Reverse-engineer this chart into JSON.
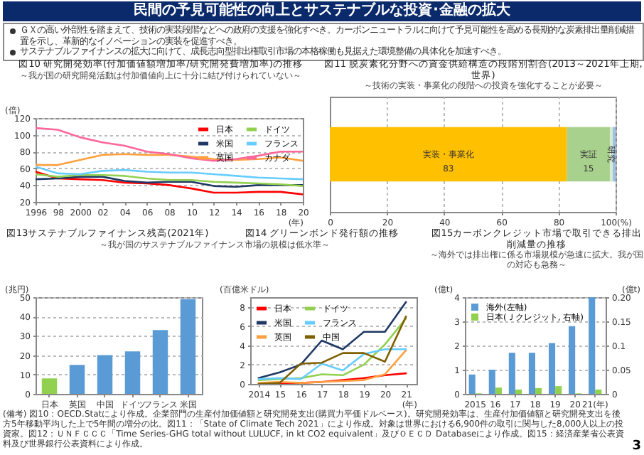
{
  "chart_data": [
    {
      "type": "other",
      "title": "民間の予見可能性の向上とサステナブルな投資･金融の拡大",
      "annotations": [
        "ＧＸの高い外部性を踏まえて、技術の実装段階などへの政府の支援を強化すべき。カーボンニュートラルに向けて予見可能性を高める長期的な炭素排出量削減措置を示し、革新的なイノベーションの実装を促進すべき。",
        "サステナブルファイナンスの拡大に向けて、成長志向型排出権取引市場の本格稼働も見据えた環境整備の具体化を加速すべき。"
      ]
    },
    {
      "type": "line",
      "title": "図10 研究開発効率(付加価値額増加率/研究開発費増加率)の推移",
      "subtitle": "～我が国の研究開発活動は付加価値向上に十分に結び付けられていない～",
      "ylabel": "(倍)",
      "xlabel": "(年)",
      "x": [
        1996,
        1998,
        2000,
        2002,
        2004,
        2006,
        2008,
        2010,
        2012,
        2014,
        2016,
        2018,
        2020
      ],
      "xlim": [
        1996,
        2020
      ],
      "xticks": [
        {
          "value": 1996,
          "label": "1996"
        },
        {
          "value": 1998,
          "label": "98"
        },
        {
          "value": 2000,
          "label": "2000"
        },
        {
          "value": 2002,
          "label": "02"
        },
        {
          "value": 2004,
          "label": "04"
        },
        {
          "value": 2006,
          "label": "06"
        },
        {
          "value": 2008,
          "label": "08"
        },
        {
          "value": 2010,
          "label": "10"
        },
        {
          "value": 2012,
          "label": "12"
        },
        {
          "value": 2014,
          "label": "14"
        },
        {
          "value": 2016,
          "label": "16"
        },
        {
          "value": 2018,
          "label": "18"
        },
        {
          "value": 2020,
          "label": "20"
        }
      ],
      "ylim": [
        20,
        120
      ],
      "yticks": [
        20,
        40,
        60,
        80,
        100,
        120
      ],
      "grid": "y",
      "legend": "top right",
      "series": [
        {
          "name": "日本",
          "color": "#ff0000",
          "values": [
            56,
            48,
            47,
            46,
            43,
            42,
            40,
            36,
            31,
            31,
            32,
            32,
            29
          ]
        },
        {
          "name": "米国",
          "color": "#1f3864",
          "values": [
            47,
            48,
            50,
            50,
            45,
            43,
            44,
            44,
            39,
            38,
            40,
            40,
            40
          ]
        },
        {
          "name": "英国",
          "color": "#ffa040",
          "values": [
            64,
            64,
            70,
            76,
            77,
            76,
            76,
            74,
            71,
            70,
            71,
            73,
            69
          ]
        },
        {
          "name": "ドイツ",
          "color": "#92d050",
          "values": [
            53,
            50,
            52,
            52,
            51,
            48,
            46,
            46,
            44,
            43,
            42,
            41,
            39
          ]
        },
        {
          "name": "フランス",
          "color": "#66ccff",
          "values": [
            62,
            54,
            53,
            57,
            58,
            56,
            55,
            55,
            53,
            51,
            49,
            48,
            47
          ]
        },
        {
          "name": "カナダ",
          "color": "#ff6699",
          "values": [
            108,
            106,
            97,
            91,
            87,
            80,
            77,
            72,
            69,
            71,
            75,
            80,
            80
          ]
        }
      ]
    },
    {
      "type": "bar",
      "orientation": "horizontal",
      "stacked": true,
      "title": "図11 脱炭素化分野への資金供給構造の段階別割合(2013～2021年上期, 世界)",
      "subtitle": "～技術の実装・事業化の段階への投資を強化することが必要～",
      "categories": [
        null
      ],
      "xlim": [
        0,
        100
      ],
      "xticks": [
        0,
        20,
        40,
        60,
        80,
        {
          "value": 100,
          "label": "100(%)"
        }
      ],
      "grid": "x",
      "series": [
        {
          "name": "実装・事業化",
          "color": "#ffc000",
          "values": [
            83
          ],
          "value_labels": [
            "83"
          ]
        },
        {
          "name": "実証",
          "color": "#a9d18e",
          "values": [
            15
          ],
          "value_labels": [
            "15"
          ]
        },
        {
          "name": "研究",
          "color": "#d9ead3",
          "values": [
            1
          ]
        },
        {
          "color": "#9dc3e6",
          "values": [
            1
          ]
        }
      ]
    },
    {
      "type": "bar",
      "title": "図13サステナブルファイナンス残高(2021年)",
      "subtitle": "～我が国のサステナブルファイナンス市場の規模は低水準～",
      "ylabel": "(兆円)",
      "categories": [
        "日本",
        "英国",
        "中国",
        "ドイツ",
        "フランス",
        "米国"
      ],
      "values": [
        8,
        15,
        20,
        22,
        33,
        49
      ],
      "colors": [
        "#92d050",
        "#5b9bd5",
        "#5b9bd5",
        "#5b9bd5",
        "#5b9bd5",
        "#5b9bd5"
      ],
      "ylim": [
        0,
        50
      ],
      "yticks": [
        0,
        10,
        20,
        30,
        40,
        50
      ],
      "grid": "y"
    },
    {
      "type": "line",
      "title": "図14 グリーンボンド発行額の推移",
      "ylabel": "(百億米ドル)",
      "xlabel": "(年)",
      "x": [
        2014,
        2015,
        2016,
        2017,
        2018,
        2019,
        2020,
        2021
      ],
      "xlim": [
        2013.6,
        2021.5
      ],
      "xticks": [
        {
          "value": 2014,
          "label": "2014"
        },
        {
          "value": 2015,
          "label": "15"
        },
        {
          "value": 2016,
          "label": "16"
        },
        {
          "value": 2017,
          "label": "17"
        },
        {
          "value": 2018,
          "label": "18"
        },
        {
          "value": 2019,
          "label": "19"
        },
        {
          "value": 2020,
          "label": "20"
        },
        {
          "value": 2021,
          "label": "21"
        }
      ],
      "ylim": [
        0,
        9
      ],
      "yticks": [
        0,
        2,
        4,
        6,
        8
      ],
      "grid": "y",
      "legend": "top left",
      "series": [
        {
          "name": "日本",
          "color": "#ff0000",
          "values": [
            0,
            0,
            0.1,
            0.2,
            0.4,
            0.6,
            0.9,
            1.1
          ]
        },
        {
          "name": "米国",
          "color": "#1f3864",
          "values": [
            0.6,
            1.2,
            2.0,
            4.5,
            3.6,
            5.4,
            5.4,
            8.5
          ]
        },
        {
          "name": "英国",
          "color": "#ffa040",
          "values": [
            0.1,
            0.2,
            0.1,
            0.2,
            0.3,
            0.4,
            1.0,
            3.5
          ]
        },
        {
          "name": "ドイツ",
          "color": "#92d050",
          "values": [
            0.4,
            0.5,
            0.6,
            1.0,
            0.9,
            2.0,
            4.1,
            6.8
          ]
        },
        {
          "name": "フランス",
          "color": "#66ccff",
          "values": [
            0.5,
            0.6,
            0.5,
            2.1,
            1.4,
            3.1,
            3.6,
            3.6
          ]
        },
        {
          "name": "中国",
          "color": "#7f6000",
          "values": [
            0,
            0.1,
            2.1,
            2.2,
            3.2,
            3.2,
            2.3,
            7.0
          ]
        }
      ]
    },
    {
      "type": "bar",
      "title": "図15カーボンクレジット市場で取引できる排出削減量の推移",
      "subtitle": "～海外では排出権に係る市場規模が急速に拡大。我が国の対応も急務～",
      "ylabel": "(億t)",
      "y2label": "(億t)",
      "categories": [
        "2015",
        "16",
        "17",
        "18",
        "19",
        "20",
        "21(年)"
      ],
      "ylim": [
        0,
        4
      ],
      "yticks": [
        0,
        1,
        2,
        3,
        4
      ],
      "y2lim": [
        0,
        0.2
      ],
      "y2ticks": [
        0,
        0.05,
        0.1,
        0.15,
        {
          "value": 0.2,
          "label": "0.20"
        }
      ],
      "grid": "y",
      "legend": "top left",
      "series": [
        {
          "name": "海外(左軸)",
          "color": "#5b9bd5",
          "values": [
            0.8,
            1.0,
            1.7,
            1.7,
            2.1,
            2.8,
            4.0
          ]
        },
        {
          "name": "日本(Ｊクレジット, 右軸)",
          "color": "#92d050",
          "axis": "y2",
          "values": [
            0.001,
            0.013,
            0.009,
            0.012,
            0.016,
            0.001,
            0.009
          ]
        }
      ]
    },
    {
      "type": "other",
      "annotations": [
        "(備考) 図10：OECD.Statにより作成。企業部門の生産付加価値額と研究開発支出(購買力平価ドルベース)。研究開発効率は、生産付加価値額と研究開発支出を後方5年移動平均した上で5年間の増分の比。図11：「State of Climate Tech 2021」により作成。対象は世界における6,900件の取引に関与した8,000人以上の投資家。図12：ＵＮＦＣＣＣ「Time Series-GHG total without LULUCF, in kt CO2 equivalent」及びＯＥＣＤ Databaseにより作成。図15：経済産業省公表資料及び世界銀行公表資料により作成。",
        "3"
      ]
    }
  ]
}
